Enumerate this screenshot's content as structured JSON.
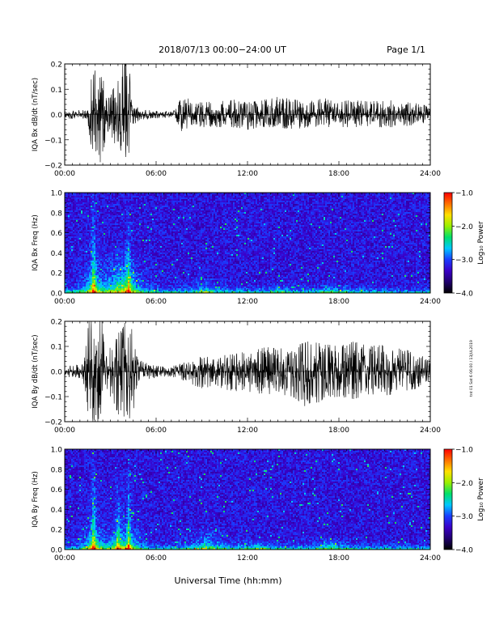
{
  "header": {
    "title": "2018/07/13  00:00−24:00 UT",
    "page": "Page 1/1"
  },
  "footer": {
    "xlabel": "Universal Time (hh:mm)",
    "side_note": "tnt 01 Sat 6 06:00 / 13JUL2019"
  },
  "colors": {
    "trace": "#000000",
    "colormap": [
      "#000000",
      "#20006e",
      "#3a00c8",
      "#1a3cff",
      "#00c8ff",
      "#00e06a",
      "#9af000",
      "#ffe000",
      "#ff7000",
      "#ff0000"
    ]
  },
  "chart_data": [
    {
      "type": "line",
      "ylabel": "IQA Bx dB/dt (nT/sec)",
      "xlim": [
        0,
        24
      ],
      "ylim": [
        -0.2,
        0.2
      ],
      "xticks": [
        "00:00",
        "06:00",
        "12:00",
        "18:00",
        "24:00"
      ],
      "yticks": [
        "−0.2",
        "−0.1",
        "0.0",
        "0.1",
        "0.2"
      ],
      "envelope": {
        "x": [
          0,
          1.5,
          1.7,
          2.0,
          2.4,
          2.7,
          3.0,
          3.5,
          3.8,
          4.2,
          4.5,
          5.0,
          6.0,
          7.0,
          7.3,
          7.5,
          8.0,
          8.5,
          9,
          10,
          11,
          12,
          13,
          14,
          15,
          16,
          17,
          18,
          19,
          20,
          21,
          22,
          23,
          24
        ],
        "upper": [
          0.015,
          0.02,
          0.2,
          0.2,
          0.2,
          0.08,
          0.08,
          0.15,
          0.2,
          0.2,
          0.04,
          0.02,
          0.015,
          0.012,
          0.02,
          0.06,
          0.07,
          0.04,
          0.05,
          0.05,
          0.06,
          0.05,
          0.06,
          0.07,
          0.06,
          0.05,
          0.07,
          0.05,
          0.06,
          0.05,
          0.06,
          0.05,
          0.05,
          0.03
        ],
        "lower": [
          -0.015,
          -0.02,
          -0.2,
          -0.2,
          -0.2,
          -0.09,
          -0.09,
          -0.17,
          -0.2,
          -0.2,
          -0.04,
          -0.02,
          -0.015,
          -0.012,
          -0.02,
          -0.07,
          -0.06,
          -0.04,
          -0.05,
          -0.05,
          -0.05,
          -0.06,
          -0.05,
          -0.05,
          -0.06,
          -0.05,
          -0.05,
          -0.05,
          -0.05,
          -0.05,
          -0.05,
          -0.05,
          -0.04,
          -0.03
        ]
      }
    },
    {
      "type": "heatmap",
      "ylabel": "IQA Bx Freq (Hz)",
      "xlim": [
        0,
        24
      ],
      "ylim": [
        0,
        1.0
      ],
      "xticks": [
        "00:00",
        "06:00",
        "12:00",
        "18:00",
        "24:00"
      ],
      "yticks": [
        "0.0",
        "0.2",
        "0.4",
        "0.6",
        "0.8",
        "1.0"
      ],
      "colorbar": {
        "label": "Log₁₀ Power",
        "range": [
          -4.0,
          -1.0
        ],
        "ticks": [
          "−1.0",
          "−2.0",
          "−3.0",
          "−4.0"
        ]
      },
      "bursts": [
        {
          "t": 1.9,
          "height": 1.0,
          "strength": 1.0
        },
        {
          "t": 3.6,
          "height": 0.45,
          "strength": 0.7
        },
        {
          "t": 4.2,
          "height": 0.85,
          "strength": 0.75
        },
        {
          "t": 9.3,
          "height": 0.15,
          "strength": 0.45
        },
        {
          "t": 14.0,
          "height": 0.08,
          "strength": 0.3
        },
        {
          "t": 17.5,
          "height": 0.1,
          "strength": 0.35
        }
      ]
    },
    {
      "type": "line",
      "ylabel": "IQA By dB/dt (nT/sec)",
      "xlim": [
        0,
        24
      ],
      "ylim": [
        -0.2,
        0.2
      ],
      "xticks": [
        "00:00",
        "06:00",
        "12:00",
        "18:00",
        "24:00"
      ],
      "yticks": [
        "−0.2",
        "−0.1",
        "0.0",
        "0.1",
        "0.2"
      ],
      "envelope": {
        "x": [
          0,
          1.2,
          1.6,
          1.8,
          2.5,
          2.8,
          3.2,
          3.5,
          4.0,
          4.4,
          4.8,
          5.5,
          6.5,
          7.0,
          8.0,
          9.0,
          10,
          11,
          12,
          13,
          14,
          15,
          16,
          17,
          18,
          19,
          20,
          21,
          22,
          23,
          24
        ],
        "upper": [
          0.02,
          0.03,
          0.2,
          0.2,
          0.2,
          0.09,
          0.1,
          0.15,
          0.2,
          0.2,
          0.05,
          0.03,
          0.02,
          0.02,
          0.04,
          0.06,
          0.06,
          0.07,
          0.08,
          0.1,
          0.09,
          0.1,
          0.12,
          0.11,
          0.1,
          0.12,
          0.1,
          0.11,
          0.09,
          0.08,
          0.06
        ],
        "lower": [
          -0.02,
          -0.03,
          -0.2,
          -0.2,
          -0.2,
          -0.1,
          -0.12,
          -0.17,
          -0.2,
          -0.2,
          -0.05,
          -0.03,
          -0.02,
          -0.02,
          -0.04,
          -0.07,
          -0.06,
          -0.08,
          -0.08,
          -0.09,
          -0.09,
          -0.1,
          -0.15,
          -0.11,
          -0.1,
          -0.11,
          -0.09,
          -0.1,
          -0.08,
          -0.07,
          -0.05
        ]
      }
    },
    {
      "type": "heatmap",
      "ylabel": "IQA By Freq (Hz)",
      "xlim": [
        0,
        24
      ],
      "ylim": [
        0,
        1.0
      ],
      "xticks": [
        "00:00",
        "06:00",
        "12:00",
        "18:00",
        "24:00"
      ],
      "yticks": [
        "0.0",
        "0.2",
        "0.4",
        "0.6",
        "0.8",
        "1.0"
      ],
      "colorbar": {
        "label": "Log₁₀ Power",
        "range": [
          -4.0,
          -1.0
        ],
        "ticks": [
          "−1.0",
          "−2.0",
          "−3.0",
          "−4.0"
        ]
      },
      "bursts": [
        {
          "t": 1.9,
          "height": 1.0,
          "strength": 1.0
        },
        {
          "t": 3.5,
          "height": 0.8,
          "strength": 0.75
        },
        {
          "t": 4.2,
          "height": 0.9,
          "strength": 0.8
        },
        {
          "t": 9.3,
          "height": 0.22,
          "strength": 0.6
        },
        {
          "t": 12.5,
          "height": 0.1,
          "strength": 0.35
        },
        {
          "t": 17.5,
          "height": 0.12,
          "strength": 0.45
        }
      ]
    }
  ]
}
